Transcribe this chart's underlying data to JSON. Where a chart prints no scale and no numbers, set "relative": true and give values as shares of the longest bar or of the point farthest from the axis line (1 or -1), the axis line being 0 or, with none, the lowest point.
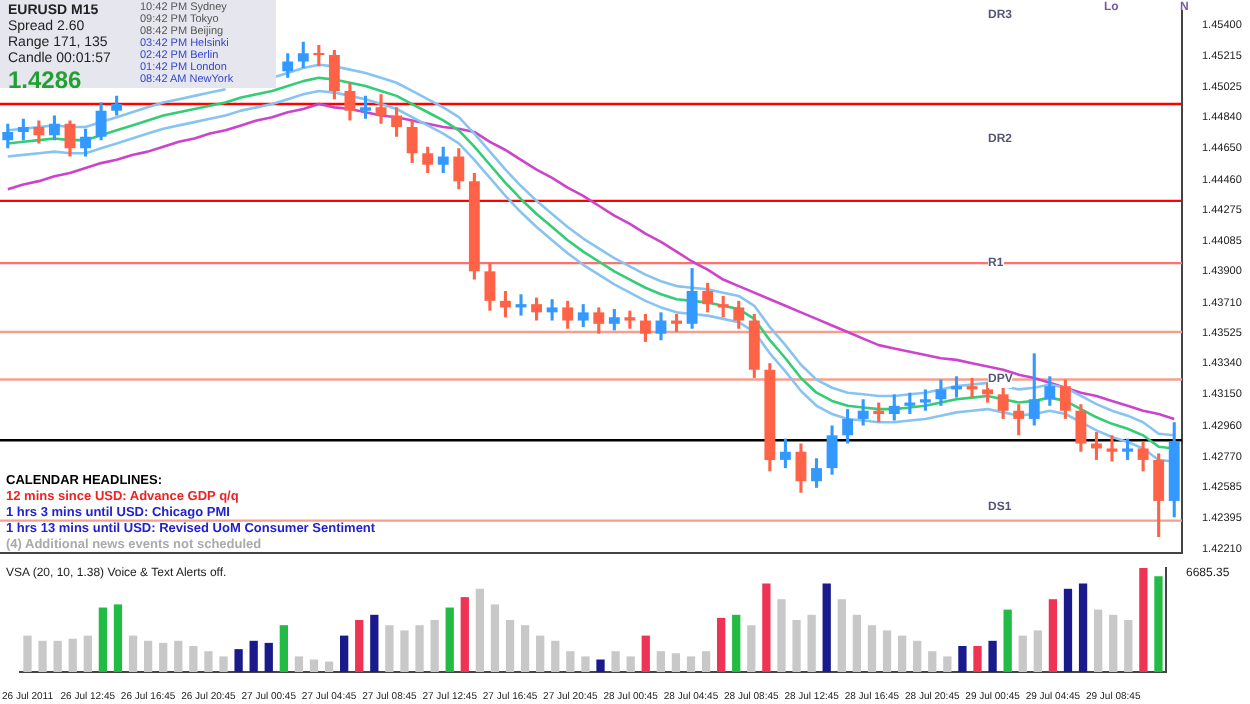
{
  "chart_data": [
    {
      "type": "candlestick",
      "series": [
        {
          "type": "candlestick",
          "ohlc": [
            [
              1.447,
              1.448,
              1.4465,
              1.4475
            ],
            [
              1.4475,
              1.4483,
              1.447,
              1.4478
            ],
            [
              1.4478,
              1.4482,
              1.4468,
              1.4473
            ],
            [
              1.4473,
              1.4485,
              1.447,
              1.448
            ],
            [
              1.448,
              1.4482,
              1.446,
              1.4465
            ],
            [
              1.4465,
              1.4477,
              1.446,
              1.4472
            ],
            [
              1.4472,
              1.4493,
              1.447,
              1.4488
            ],
            [
              1.4488,
              1.4497,
              1.4485,
              1.4492
            ],
            null,
            null,
            null,
            null,
            null,
            null,
            null,
            null,
            null,
            null,
            [
              1.4512,
              1.4523,
              1.4508,
              1.4518
            ],
            [
              1.4518,
              1.453,
              1.4514,
              1.4523
            ],
            [
              1.4523,
              1.4528,
              1.4515,
              1.4522
            ],
            [
              1.4522,
              1.4525,
              1.4495,
              1.45
            ],
            [
              1.45,
              1.4505,
              1.4482,
              1.4488
            ],
            [
              1.4488,
              1.4497,
              1.4483,
              1.449
            ],
            [
              1.449,
              1.4498,
              1.448,
              1.4485
            ],
            [
              1.4485,
              1.449,
              1.4472,
              1.4478
            ],
            [
              1.4478,
              1.4482,
              1.4456,
              1.4462
            ],
            [
              1.4462,
              1.4466,
              1.445,
              1.4455
            ],
            [
              1.4455,
              1.4466,
              1.445,
              1.446
            ],
            [
              1.446,
              1.4465,
              1.444,
              1.4445
            ],
            [
              1.4445,
              1.445,
              1.4385,
              1.439
            ],
            [
              1.439,
              1.4395,
              1.4366,
              1.4372
            ],
            [
              1.4372,
              1.4378,
              1.4362,
              1.4368
            ],
            [
              1.4368,
              1.4376,
              1.4363,
              1.437
            ],
            [
              1.437,
              1.4374,
              1.436,
              1.4365
            ],
            [
              1.4365,
              1.4373,
              1.436,
              1.4368
            ],
            [
              1.4368,
              1.4372,
              1.4355,
              1.436
            ],
            [
              1.436,
              1.437,
              1.4356,
              1.4365
            ],
            [
              1.4365,
              1.4368,
              1.4352,
              1.4358
            ],
            [
              1.4358,
              1.4367,
              1.4354,
              1.4362
            ],
            [
              1.4362,
              1.4366,
              1.4355,
              1.436
            ],
            [
              1.436,
              1.4364,
              1.4347,
              1.4352
            ],
            [
              1.4352,
              1.4365,
              1.4348,
              1.436
            ],
            [
              1.436,
              1.4364,
              1.4353,
              1.4358
            ],
            [
              1.4358,
              1.4392,
              1.4355,
              1.4378
            ],
            [
              1.4378,
              1.4383,
              1.4365,
              1.437
            ],
            [
              1.437,
              1.4375,
              1.4362,
              1.4368
            ],
            [
              1.4368,
              1.4372,
              1.4355,
              1.436
            ],
            [
              1.436,
              1.4364,
              1.4325,
              1.433
            ],
            [
              1.433,
              1.4334,
              1.4268,
              1.4275
            ],
            [
              1.4275,
              1.4288,
              1.427,
              1.428
            ],
            [
              1.428,
              1.4285,
              1.4255,
              1.4262
            ],
            [
              1.4262,
              1.4276,
              1.4258,
              1.427
            ],
            [
              1.427,
              1.4296,
              1.4266,
              1.429
            ],
            [
              1.429,
              1.4306,
              1.4285,
              1.43
            ],
            [
              1.43,
              1.4312,
              1.4296,
              1.4305
            ],
            [
              1.4305,
              1.431,
              1.4298,
              1.4303
            ],
            [
              1.4303,
              1.4315,
              1.4299,
              1.4308
            ],
            [
              1.4308,
              1.4316,
              1.4303,
              1.431
            ],
            [
              1.431,
              1.4318,
              1.4305,
              1.4312
            ],
            [
              1.4312,
              1.4324,
              1.4308,
              1.4318
            ],
            [
              1.4318,
              1.4326,
              1.4313,
              1.432
            ],
            [
              1.432,
              1.4325,
              1.4313,
              1.4318
            ],
            [
              1.4318,
              1.4322,
              1.431,
              1.4315
            ],
            [
              1.4315,
              1.4319,
              1.43,
              1.4305
            ],
            [
              1.4305,
              1.4309,
              1.429,
              1.43
            ],
            [
              1.43,
              1.434,
              1.4296,
              1.4312
            ],
            [
              1.4312,
              1.4326,
              1.4308,
              1.432
            ],
            [
              1.432,
              1.4324,
              1.43,
              1.4305
            ],
            [
              1.4305,
              1.4309,
              1.428,
              1.4285
            ],
            [
              1.4285,
              1.4292,
              1.4275,
              1.4282
            ],
            [
              1.4282,
              1.429,
              1.4274,
              1.428
            ],
            [
              1.428,
              1.4288,
              1.4275,
              1.4282
            ],
            [
              1.4282,
              1.4286,
              1.4268,
              1.4275
            ],
            [
              1.4275,
              1.4279,
              1.4228,
              1.425
            ],
            [
              1.425,
              1.4298,
              1.424,
              1.4286
            ]
          ],
          "colors": [
            "#3399ff",
            "#3399ff",
            "#ff6347",
            "#3399ff",
            "#ff6347",
            "#3399ff",
            "#3399ff",
            "#3399ff",
            null,
            null,
            null,
            null,
            null,
            null,
            null,
            null,
            null,
            null,
            "#3399ff",
            "#3399ff",
            "#ff6347",
            "#ff6347",
            "#ff6347",
            "#3399ff",
            "#ff6347",
            "#ff6347",
            "#ff6347",
            "#ff6347",
            "#3399ff",
            "#ff6347",
            "#ff6347",
            "#ff6347",
            "#ff6347",
            "#3399ff",
            "#ff6347",
            "#3399ff",
            "#ff6347",
            "#3399ff",
            "#ff6347",
            "#3399ff",
            "#ff6347",
            "#ff6347",
            "#3399ff",
            "#ff6347",
            "#3399ff",
            "#ff6347",
            "#ff6347",
            "#ff6347",
            "#ff6347",
            "#ff6347",
            "#3399ff",
            "#ff6347",
            "#3399ff",
            "#3399ff",
            "#3399ff",
            "#3399ff",
            "#ff6347",
            "#3399ff",
            "#3399ff",
            "#3399ff",
            "#3399ff",
            "#3399ff",
            "#ff6347",
            "#ff6347",
            "#ff6347",
            "#ff6347",
            "#3399ff",
            "#3399ff",
            "#ff6347",
            "#ff6347",
            "#ff6347",
            "#ff6347",
            "#3399ff",
            "#ff6347",
            "#ff6347",
            "#3399ff"
          ]
        },
        {
          "type": "line",
          "color": "#33cc77",
          "values": [
            1.4468,
            1.4469,
            1.447,
            1.4471,
            1.447,
            1.447,
            1.4473,
            1.4476,
            1.4479,
            1.4482,
            1.4485,
            1.4487,
            1.4489,
            1.4491,
            1.4493,
            1.4496,
            1.4498,
            1.45,
            1.4503,
            1.4506,
            1.4508,
            1.4507,
            1.4505,
            1.4503,
            1.45,
            1.4497,
            1.4492,
            1.4487,
            1.4482,
            1.4476,
            1.4466,
            1.4455,
            1.4444,
            1.4434,
            1.4425,
            1.4417,
            1.4409,
            1.4402,
            1.4396,
            1.439,
            1.4385,
            1.438,
            1.4376,
            1.4373,
            1.4372,
            1.4371,
            1.4369,
            1.4367,
            1.4361,
            1.4348,
            1.4337,
            1.4325,
            1.4316,
            1.4311,
            1.4308,
            1.4307,
            1.4306,
            1.4306,
            1.4307,
            1.4308,
            1.431,
            1.4312,
            1.4313,
            1.4314,
            1.4312,
            1.431,
            1.4311,
            1.4313,
            1.4311,
            1.4306,
            1.4301,
            1.4297,
            1.4294,
            1.429,
            1.4283,
            1.4282
          ]
        },
        {
          "type": "line",
          "color": "#88c4f0",
          "values": [
            1.4476,
            1.4477,
            1.4478,
            1.4479,
            1.4478,
            1.4478,
            1.4481,
            1.4484,
            1.4487,
            1.449,
            1.4493,
            1.4495,
            1.4497,
            1.4499,
            1.4501,
            null,
            null,
            1.4508,
            1.4511,
            1.4514,
            1.4516,
            1.4515,
            1.4513,
            1.4511,
            1.4508,
            1.4505,
            1.45,
            1.4495,
            1.449,
            1.4484,
            1.4474,
            1.4463,
            1.4452,
            1.4442,
            1.4433,
            1.4425,
            1.4417,
            1.441,
            1.4404,
            1.4398,
            1.4393,
            1.4388,
            1.4384,
            1.4381,
            1.438,
            1.4379,
            1.4377,
            1.4375,
            1.4369,
            1.4356,
            1.4345,
            1.4333,
            1.4324,
            1.4319,
            1.4316,
            1.4315,
            1.4314,
            1.4314,
            1.4315,
            1.4316,
            1.4318,
            1.432,
            1.4321,
            1.4322,
            1.432,
            1.4318,
            1.4319,
            1.4321,
            1.4319,
            1.4314,
            1.4309,
            1.4305,
            1.4302,
            1.4298,
            1.4291,
            1.429
          ]
        },
        {
          "type": "line",
          "color": "#88c4f0",
          "values": [
            1.446,
            1.4461,
            1.4462,
            1.4463,
            1.4462,
            1.4462,
            1.4465,
            1.4468,
            1.4471,
            1.4474,
            1.4477,
            1.4479,
            1.4481,
            1.4483,
            1.4485,
            1.4488,
            1.449,
            1.4492,
            1.4495,
            1.4498,
            1.45,
            1.4499,
            1.4497,
            1.4495,
            1.4492,
            1.4489,
            1.4484,
            1.4479,
            1.4474,
            1.4468,
            1.4458,
            1.4447,
            1.4436,
            1.4426,
            1.4417,
            1.4409,
            1.4401,
            1.4394,
            1.4388,
            1.4382,
            1.4377,
            1.4372,
            1.4368,
            1.4365,
            1.4364,
            1.4363,
            1.4361,
            1.4359,
            1.4353,
            1.434,
            1.4329,
            1.4317,
            1.4308,
            1.4303,
            1.43,
            1.4299,
            1.4298,
            1.4298,
            1.4299,
            1.43,
            1.4302,
            1.4304,
            1.4305,
            1.4306,
            1.4304,
            1.4302,
            1.4303,
            1.4305,
            1.4303,
            1.4298,
            1.4293,
            1.4289,
            1.4286,
            1.4282,
            1.4275,
            1.4274
          ]
        },
        {
          "type": "line",
          "color": "#cc44cc",
          "values": [
            1.444,
            1.4443,
            1.4445,
            1.4448,
            1.445,
            1.4453,
            1.4456,
            1.4458,
            1.4461,
            1.4463,
            1.4466,
            1.4469,
            1.4471,
            1.4474,
            1.4476,
            1.4479,
            1.4482,
            1.4484,
            1.4487,
            1.4489,
            1.4492,
            1.449,
            1.4489,
            1.4487,
            1.4485,
            1.4484,
            1.4482,
            1.448,
            1.4478,
            1.4477,
            1.4475,
            1.4469,
            1.4464,
            1.4458,
            1.4452,
            1.4447,
            1.4441,
            1.4436,
            1.443,
            1.4424,
            1.4419,
            1.4413,
            1.4408,
            1.4402,
            1.4396,
            1.4391,
            1.4385,
            1.4381,
            1.4377,
            1.4373,
            1.4369,
            1.4365,
            1.4361,
            1.4357,
            1.4353,
            1.4349,
            1.4345,
            1.4343,
            1.4341,
            1.4339,
            1.4337,
            1.4336,
            1.4334,
            1.4332,
            1.433,
            1.4327,
            1.4325,
            1.4322,
            1.4319,
            1.4316,
            1.4314,
            1.4311,
            1.4308,
            1.4305,
            1.4303,
            1.43
          ]
        }
      ],
      "ylim": [
        1.4218,
        1.4549
      ],
      "yticks": [
        {
          "value": 1.454,
          "label": "1.45400"
        },
        {
          "value": 1.45215,
          "label": "1.45215"
        },
        {
          "value": 1.45025,
          "label": "1.45025"
        },
        {
          "value": 1.4484,
          "label": "1.44840"
        },
        {
          "value": 1.4465,
          "label": "1.44650"
        },
        {
          "value": 1.4446,
          "label": "1.44460"
        },
        {
          "value": 1.44275,
          "label": "1.44275"
        },
        {
          "value": 1.44085,
          "label": "1.44085"
        },
        {
          "value": 1.439,
          "label": "1.43900"
        },
        {
          "value": 1.4371,
          "label": "1.43710"
        },
        {
          "value": 1.43525,
          "label": "1.43525"
        },
        {
          "value": 1.4334,
          "label": "1.43340"
        },
        {
          "value": 1.4315,
          "label": "1.43150"
        },
        {
          "value": 1.4296,
          "label": "1.42960"
        },
        {
          "value": 1.4277,
          "label": "1.42770"
        },
        {
          "value": 1.42585,
          "label": "1.42585"
        },
        {
          "value": 1.42395,
          "label": "1.42395"
        },
        {
          "value": 1.4221,
          "label": "1.42210"
        }
      ],
      "tick_labels": "y",
      "ref_lines": [
        {
          "axis": "y",
          "value": 1.4492,
          "color": "#ff0000"
        },
        {
          "axis": "y",
          "value": 1.4433,
          "color": "#ff0000"
        },
        {
          "axis": "y",
          "value": 1.4395,
          "color": "#ff7070"
        },
        {
          "axis": "y",
          "value": 1.4353,
          "color": "#f4a090"
        },
        {
          "axis": "y",
          "value": 1.4324,
          "color": "#f4a090"
        },
        {
          "axis": "y",
          "value": 1.4287,
          "color": "#000000"
        },
        {
          "axis": "y",
          "value": 1.4238,
          "color": "#f4a090"
        }
      ],
      "annotations": [
        "EURUSD  M15",
        "Spread  2.60",
        "Range  171, 135",
        "Candle  00:01:57",
        "1.4286",
        "10:42 PM  Sydney",
        "09:42 PM  Tokyo",
        "08:42 PM  Beijing",
        "03:42 PM  Helsinki",
        "02:42 PM  Berlin",
        "01:42 PM  London",
        "08:42 AM  NewYork",
        "CALENDAR HEADLINES:",
        "12 mins since USD: Advance GDP q/q",
        "1 hrs 3 mins until USD: Chicago PMI",
        "1 hrs 13 mins until USD: Revised UoM Consumer Sentiment",
        "(4) Additional news events not scheduled",
        "Lo",
        "N",
        "DR3",
        "DR2",
        "R1",
        "DPV",
        "DS1"
      ]
    },
    {
      "type": "bar",
      "relative": true,
      "categories": [
        "26 Jul 2011",
        null,
        null,
        null,
        "26 Jul 12:45",
        null,
        null,
        null,
        "26 Jul 16:45",
        null,
        null,
        null,
        "26 Jul 20:45",
        null,
        null,
        null,
        "27 Jul 00:45",
        null,
        null,
        null,
        "27 Jul 04:45",
        null,
        null,
        null,
        "27 Jul 08:45",
        null,
        null,
        null,
        "27 Jul 12:45",
        null,
        null,
        null,
        "27 Jul 16:45",
        null,
        null,
        null,
        "27 Jul 20:45",
        null,
        null,
        null,
        "28 Jul 00:45",
        null,
        null,
        null,
        "28 Jul 04:45",
        null,
        null,
        null,
        "28 Jul 08:45",
        null,
        null,
        null,
        "28 Jul 12:45",
        null,
        null,
        null,
        "28 Jul 16:45",
        null,
        null,
        null,
        "28 Jul 20:45",
        null,
        null,
        null,
        "29 Jul 00:45",
        null,
        null,
        null,
        "29 Jul 04:45",
        null,
        null,
        null,
        "29 Jul 08:45",
        null,
        null,
        null
      ],
      "values": [
        0.35,
        0.3,
        0.3,
        0.32,
        0.35,
        0.62,
        0.65,
        0.35,
        0.3,
        0.28,
        0.3,
        0.25,
        0.2,
        0.15,
        0.22,
        0.3,
        0.28,
        0.45,
        0.15,
        0.12,
        0.1,
        0.35,
        0.5,
        0.55,
        0.45,
        0.4,
        0.45,
        0.5,
        0.62,
        0.72,
        0.8,
        0.65,
        0.5,
        0.45,
        0.35,
        0.3,
        0.2,
        0.15,
        0.12,
        0.2,
        0.15,
        0.35,
        0.2,
        0.18,
        0.15,
        0.2,
        0.52,
        0.55,
        0.45,
        0.85,
        0.7,
        0.5,
        0.55,
        0.85,
        0.7,
        0.55,
        0.45,
        0.4,
        0.35,
        0.3,
        0.2,
        0.15,
        0.25,
        0.25,
        0.3,
        0.6,
        0.35,
        0.4,
        0.7,
        0.8,
        0.85,
        0.6,
        0.55,
        0.5,
        1,
        0.92
      ],
      "colors": [
        "#c8c8c8",
        "#c8c8c8",
        "#c8c8c8",
        "#c8c8c8",
        "#c8c8c8",
        "#22bb44",
        "#22bb44",
        "#c8c8c8",
        "#c8c8c8",
        "#c8c8c8",
        "#c8c8c8",
        "#c8c8c8",
        "#c8c8c8",
        "#c8c8c8",
        "#1a1a8c",
        "#1a1a8c",
        "#1a1a8c",
        "#22bb44",
        "#c8c8c8",
        "#c8c8c8",
        "#c8c8c8",
        "#1a1a8c",
        "#ee3355",
        "#1a1a8c",
        "#c8c8c8",
        "#c8c8c8",
        "#c8c8c8",
        "#c8c8c8",
        "#22bb44",
        "#ee3355",
        "#c8c8c8",
        "#c8c8c8",
        "#c8c8c8",
        "#c8c8c8",
        "#c8c8c8",
        "#c8c8c8",
        "#c8c8c8",
        "#c8c8c8",
        "#1a1a8c",
        "#c8c8c8",
        "#c8c8c8",
        "#ee3355",
        "#c8c8c8",
        "#c8c8c8",
        "#c8c8c8",
        "#c8c8c8",
        "#ee3355",
        "#22bb44",
        "#c8c8c8",
        "#ee3355",
        "#c8c8c8",
        "#c8c8c8",
        "#c8c8c8",
        "#1a1a8c",
        "#c8c8c8",
        "#c8c8c8",
        "#c8c8c8",
        "#c8c8c8",
        "#c8c8c8",
        "#c8c8c8",
        "#c8c8c8",
        "#c8c8c8",
        "#1a1a8c",
        "#ee3355",
        "#1a1a8c",
        "#22bb44",
        "#c8c8c8",
        "#c8c8c8",
        "#ee3355",
        "#1a1a8c",
        "#1a1a8c",
        "#c8c8c8",
        "#c8c8c8",
        "#c8c8c8",
        "#ee3355",
        "#22bb44"
      ],
      "annotations": [
        "VSA (20, 10, 1.38)  Voice & Text Alerts off.",
        "6685.35"
      ]
    }
  ]
}
